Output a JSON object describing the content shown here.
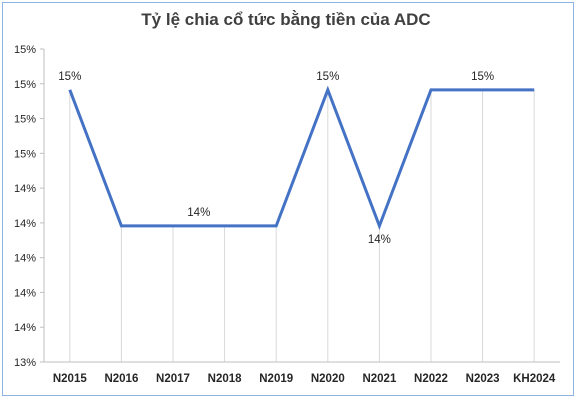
{
  "chart_data": {
    "type": "line",
    "title": "Tỷ lệ chia cổ tức bằng tiền của ADC",
    "xlabel": "",
    "ylabel": "",
    "categories": [
      "N2015",
      "N2016",
      "N2017",
      "N2018",
      "N2019",
      "N2020",
      "N2021",
      "N2022",
      "N2023",
      "KH2024"
    ],
    "series": [
      {
        "values": [
          15,
          14,
          14,
          14,
          14,
          15,
          14,
          15,
          15,
          15
        ]
      }
    ],
    "y_tick_labels": [
      "13%",
      "14%",
      "14%",
      "14%",
      "14%",
      "14%",
      "15%",
      "15%",
      "15%",
      "15%"
    ],
    "ylim": [
      13,
      15.3
    ],
    "data_labels": [
      {
        "index": 0,
        "text": "15%",
        "position": "above"
      },
      {
        "index": 3,
        "text": "14%",
        "position": "above-left"
      },
      {
        "index": 5,
        "text": "15%",
        "position": "above"
      },
      {
        "index": 6,
        "text": "14%",
        "position": "below"
      },
      {
        "index": 8,
        "text": "15%",
        "position": "above"
      }
    ],
    "line_color": "#4472c4",
    "grid": "vertical",
    "grid_color": "#d9d9d9",
    "legend": "none"
  }
}
